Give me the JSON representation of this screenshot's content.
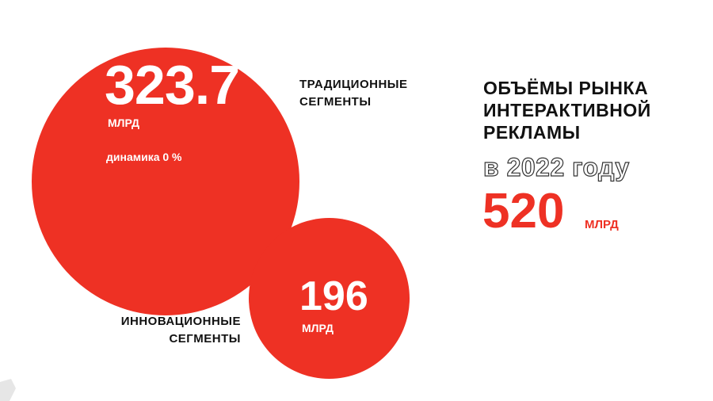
{
  "colors": {
    "accent": "#ee3124",
    "text": "#111111",
    "background": "#ffffff"
  },
  "title_lines": [
    "ОБЪЁМЫ РЫНКА",
    "ИНТЕРАКТИВНОЙ",
    "РЕКЛАМЫ"
  ],
  "year_label": "в 2022 году",
  "total": {
    "value": "520",
    "unit": "МЛРД"
  },
  "chart_data": {
    "type": "bubble",
    "title": "",
    "series": [
      {
        "name": "ТРАДИЦИОННЫЕ СЕГМЕНТЫ",
        "name_lines": [
          "ТРАДИЦИОННЫЕ",
          "СЕГМЕНТЫ"
        ],
        "value": 323.7,
        "value_label": "323.7",
        "unit": "МЛРД",
        "note": "динамика 0 %"
      },
      {
        "name": "ИННОВАЦИОННЫЕ СЕГМЕНТЫ",
        "name_lines": [
          "ИННОВАЦИОННЫЕ",
          "СЕГМЕНТЫ"
        ],
        "value": 196,
        "value_label": "196",
        "unit": "МЛРД"
      }
    ]
  }
}
